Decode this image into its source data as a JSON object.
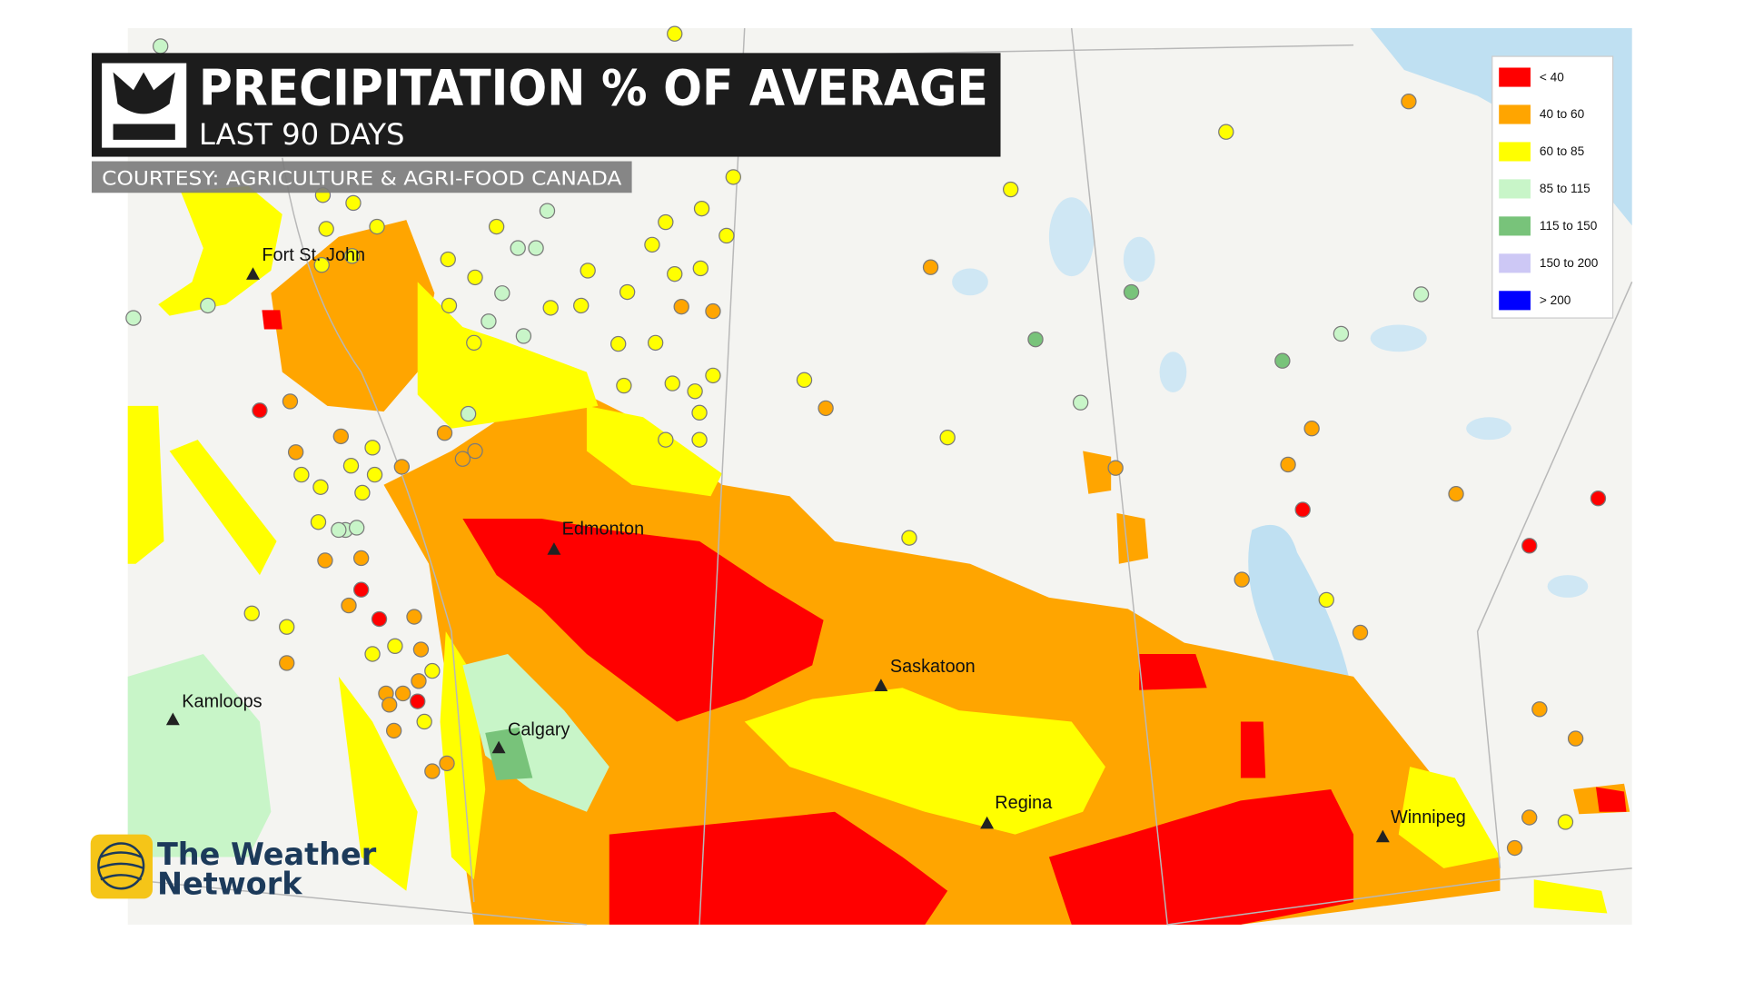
{
  "header": {
    "title": "PRECIPITATION % OF AVERAGE",
    "subtitle": "LAST 90 DAYS",
    "courtesy": "COURTESY: AGRICULTURE & AGRI-FOOD CANADA"
  },
  "legend": [
    {
      "label": "< 40",
      "color": "#ff0000"
    },
    {
      "label": "40 to 60",
      "color": "#ffa500"
    },
    {
      "label": "60 to 85",
      "color": "#ffff00"
    },
    {
      "label": "85 to 115",
      "color": "#c8f5c8"
    },
    {
      "label": "115 to 150",
      "color": "#78c37a"
    },
    {
      "label": "150 to 200",
      "color": "#cdc8f5"
    },
    {
      "label": "> 200",
      "color": "#0000ff"
    }
  ],
  "cities": [
    "Fort St. John",
    "Edmonton",
    "Kamloops",
    "Calgary",
    "Saskatoon",
    "Regina",
    "Winnipeg"
  ],
  "logo": {
    "line1": "The Weather",
    "line2": "Network"
  }
}
